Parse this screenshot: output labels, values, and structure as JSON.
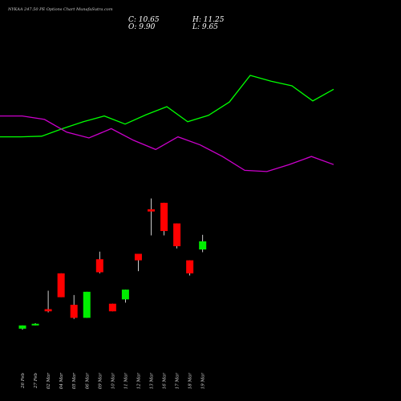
{
  "header": {
    "title": "NYKAA 247.50 PE Options  Chart MunafaSutra.com",
    "close_label": "C: 10.65",
    "open_label": "O: 9.90",
    "high_label": "H: 11.25",
    "low_label": "L: 9.65"
  },
  "colors": {
    "background": "#000000",
    "up_candle": "#00ee00",
    "down_candle": "#ff0000",
    "wick": "#ffffff",
    "green_line": "#00ff00",
    "magenta_line": "#cc00cc"
  },
  "chart_data": {
    "type": "candlestick",
    "categories": [
      "26 Feb",
      "27 Feb",
      "02 Mar",
      "04 Mar",
      "05 Mar",
      "06 Mar",
      "09 Mar",
      "10 Mar",
      "11 Mar",
      "12 Mar",
      "13 Mar",
      "16 Mar",
      "17 Mar",
      "18 Mar",
      "19 Mar"
    ],
    "candles": [
      {
        "date": "26 Feb",
        "open": 2.6,
        "high": 2.9,
        "low": 2.5,
        "close": 2.9,
        "dir": "up"
      },
      {
        "date": "27 Feb",
        "open": 2.9,
        "high": 3.1,
        "low": 2.9,
        "close": 3.05,
        "dir": "up"
      },
      {
        "date": "02 Mar",
        "open": 4.4,
        "high": 6.1,
        "low": 4.1,
        "close": 4.2,
        "dir": "down"
      },
      {
        "date": "04 Mar",
        "open": 7.7,
        "high": 7.7,
        "low": 5.5,
        "close": 5.5,
        "dir": "down"
      },
      {
        "date": "05 Mar",
        "open": 4.8,
        "high": 5.7,
        "low": 3.5,
        "close": 3.6,
        "dir": "down"
      },
      {
        "date": "06 Mar",
        "open": 3.6,
        "high": 6.0,
        "low": 3.6,
        "close": 6.0,
        "dir": "up"
      },
      {
        "date": "09 Mar",
        "open": 9.0,
        "high": 9.7,
        "low": 7.7,
        "close": 7.8,
        "dir": "down"
      },
      {
        "date": "10 Mar",
        "open": 4.9,
        "high": 4.9,
        "low": 4.2,
        "close": 4.2,
        "dir": "down"
      },
      {
        "date": "11 Mar",
        "open": 5.3,
        "high": 6.2,
        "low": 5.0,
        "close": 6.2,
        "dir": "up"
      },
      {
        "date": "12 Mar",
        "open": 9.5,
        "high": 9.5,
        "low": 7.9,
        "close": 8.9,
        "dir": "down"
      },
      {
        "date": "13 Mar",
        "open": 13.6,
        "high": 14.6,
        "low": 11.2,
        "close": 13.4,
        "dir": "down"
      },
      {
        "date": "16 Mar",
        "open": 14.2,
        "high": 14.2,
        "low": 11.2,
        "close": 11.6,
        "dir": "down"
      },
      {
        "date": "17 Mar",
        "open": 12.3,
        "high": 12.3,
        "low": 10.0,
        "close": 10.2,
        "dir": "down"
      },
      {
        "date": "18 Mar",
        "open": 8.9,
        "high": 8.9,
        "low": 7.5,
        "close": 7.7,
        "dir": "down"
      },
      {
        "date": "19 Mar",
        "open": 9.9,
        "high": 11.25,
        "low": 9.65,
        "close": 10.65,
        "dir": "up"
      }
    ],
    "green_line": [
      0.7,
      0.7,
      0.71,
      0.84,
      0.96,
      1.06,
      0.92,
      1.08,
      1.22,
      0.96,
      1.07,
      1.3,
      1.76,
      1.66,
      1.58,
      1.32,
      1.52
    ],
    "magenta_line": [
      1.06,
      1.06,
      1.0,
      0.78,
      0.68,
      0.84,
      0.64,
      0.48,
      0.7,
      0.56,
      0.36,
      0.12,
      0.1,
      0.22,
      0.36,
      0.22
    ],
    "line_ylim": [
      -0.4,
      2.3
    ],
    "price_ylim": [
      0,
      17.0
    ],
    "xlabel": "",
    "ylabel": "",
    "grid": false,
    "legend": "none"
  }
}
